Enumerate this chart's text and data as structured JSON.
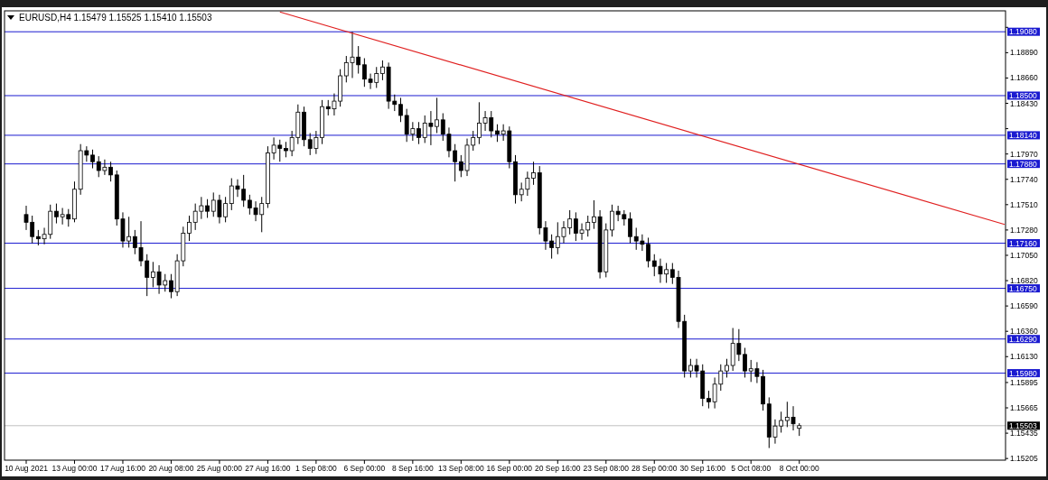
{
  "chart_data": {
    "type": "candlestick",
    "title": "EURUSD,H4  1.15479 1.15525 1.15410 1.15503",
    "color": "#000000",
    "categories": [
      "10 Aug 2021",
      null,
      null,
      null,
      null,
      null,
      null,
      null,
      "13 Aug 00:00",
      null,
      null,
      null,
      null,
      null,
      null,
      null,
      "17 Aug 16:00",
      null,
      null,
      null,
      null,
      null,
      null,
      null,
      "20 Aug 08:00",
      null,
      null,
      null,
      null,
      null,
      null,
      null,
      "25 Aug 00:00",
      null,
      null,
      null,
      null,
      null,
      null,
      null,
      "27 Aug 16:00",
      null,
      null,
      null,
      null,
      null,
      null,
      null,
      "1 Sep 08:00",
      null,
      null,
      null,
      null,
      null,
      null,
      null,
      "6 Sep 00:00",
      null,
      null,
      null,
      null,
      null,
      null,
      null,
      "8 Sep 16:00",
      null,
      null,
      null,
      null,
      null,
      null,
      null,
      "13 Sep 08:00",
      null,
      null,
      null,
      null,
      null,
      null,
      null,
      "16 Sep 00:00",
      null,
      null,
      null,
      null,
      null,
      null,
      null,
      "20 Sep 16:00",
      null,
      null,
      null,
      null,
      null,
      null,
      null,
      "23 Sep 08:00",
      null,
      null,
      null,
      null,
      null,
      null,
      null,
      "28 Sep 00:00",
      null,
      null,
      null,
      null,
      null,
      null,
      null,
      "30 Sep 16:00",
      null,
      null,
      null,
      null,
      null,
      null,
      null,
      "5 Oct 08:00",
      null,
      null,
      null,
      null,
      null,
      null,
      null,
      "8 Oct 00:00",
      null,
      null,
      null,
      null,
      null,
      null,
      null,
      null,
      null,
      null,
      null,
      null,
      null,
      null,
      null,
      null,
      null,
      null,
      null,
      null,
      null,
      null,
      null,
      null,
      null,
      null,
      null,
      null,
      null,
      null,
      null,
      null,
      null,
      null
    ],
    "ohlc": [
      [
        1.1742,
        1.175,
        1.1728,
        1.1735
      ],
      [
        1.1735,
        1.1741,
        1.1716,
        1.1722
      ],
      [
        1.1722,
        1.1728,
        1.1714,
        1.172
      ],
      [
        1.172,
        1.173,
        1.1715,
        1.1724
      ],
      [
        1.1724,
        1.1751,
        1.172,
        1.1745
      ],
      [
        1.1745,
        1.1752,
        1.1734,
        1.174
      ],
      [
        1.174,
        1.1748,
        1.1733,
        1.1742
      ],
      [
        1.1742,
        1.1747,
        1.1731,
        1.1738
      ],
      [
        1.1738,
        1.1772,
        1.1735,
        1.1765
      ],
      [
        1.1765,
        1.1806,
        1.176,
        1.18
      ],
      [
        1.18,
        1.1804,
        1.179,
        1.1796
      ],
      [
        1.1796,
        1.1801,
        1.1784,
        1.179
      ],
      [
        1.179,
        1.1795,
        1.1776,
        1.1782
      ],
      [
        1.1782,
        1.1792,
        1.1778,
        1.1785
      ],
      [
        1.1785,
        1.179,
        1.1772,
        1.1778
      ],
      [
        1.1778,
        1.1782,
        1.1732,
        1.1738
      ],
      [
        1.1738,
        1.1744,
        1.1712,
        1.1718
      ],
      [
        1.1718,
        1.174,
        1.1712,
        1.1722
      ],
      [
        1.1722,
        1.1728,
        1.1706,
        1.1712
      ],
      [
        1.1712,
        1.1736,
        1.1695,
        1.17
      ],
      [
        1.17,
        1.1706,
        1.1668,
        1.1685
      ],
      [
        1.1685,
        1.1699,
        1.1676,
        1.169
      ],
      [
        1.169,
        1.1696,
        1.167,
        1.1678
      ],
      [
        1.1678,
        1.1688,
        1.1672,
        1.1682
      ],
      [
        1.1682,
        1.1688,
        1.1666,
        1.1672
      ],
      [
        1.1672,
        1.1706,
        1.1668,
        1.17
      ],
      [
        1.17,
        1.1731,
        1.1695,
        1.1725
      ],
      [
        1.1725,
        1.1741,
        1.1718,
        1.1735
      ],
      [
        1.1735,
        1.1752,
        1.1728,
        1.1745
      ],
      [
        1.1745,
        1.1758,
        1.1738,
        1.175
      ],
      [
        1.175,
        1.1756,
        1.1739,
        1.1745
      ],
      [
        1.1745,
        1.1762,
        1.174,
        1.1755
      ],
      [
        1.1755,
        1.176,
        1.1734,
        1.174
      ],
      [
        1.174,
        1.1758,
        1.1735,
        1.1752
      ],
      [
        1.1752,
        1.1775,
        1.1746,
        1.1768
      ],
      [
        1.1768,
        1.1774,
        1.1758,
        1.1765
      ],
      [
        1.1765,
        1.1778,
        1.1749,
        1.1755
      ],
      [
        1.1755,
        1.176,
        1.1742,
        1.1748
      ],
      [
        1.1748,
        1.1754,
        1.1736,
        1.1742
      ],
      [
        1.1742,
        1.1758,
        1.1726,
        1.1752
      ],
      [
        1.1752,
        1.1804,
        1.1748,
        1.1798
      ],
      [
        1.1798,
        1.1812,
        1.1792,
        1.1805
      ],
      [
        1.1805,
        1.181,
        1.179,
        1.1802
      ],
      [
        1.1802,
        1.1808,
        1.1794,
        1.18
      ],
      [
        1.18,
        1.1818,
        1.1795,
        1.1812
      ],
      [
        1.1812,
        1.1842,
        1.1806,
        1.1835
      ],
      [
        1.1835,
        1.184,
        1.1804,
        1.181
      ],
      [
        1.181,
        1.1816,
        1.1796,
        1.1802
      ],
      [
        1.1802,
        1.1818,
        1.1797,
        1.1812
      ],
      [
        1.1812,
        1.1846,
        1.1806,
        1.184
      ],
      [
        1.184,
        1.1846,
        1.1832,
        1.1838
      ],
      [
        1.1838,
        1.1852,
        1.1832,
        1.1845
      ],
      [
        1.1845,
        1.1874,
        1.184,
        1.1868
      ],
      [
        1.1868,
        1.1886,
        1.1862,
        1.188
      ],
      [
        1.188,
        1.1908,
        1.1866,
        1.1885
      ],
      [
        1.1885,
        1.1895,
        1.187,
        1.1878
      ],
      [
        1.1878,
        1.1884,
        1.1858,
        1.1865
      ],
      [
        1.1865,
        1.187,
        1.1856,
        1.1862
      ],
      [
        1.1862,
        1.1876,
        1.1857,
        1.187
      ],
      [
        1.187,
        1.1882,
        1.1864,
        1.1876
      ],
      [
        1.1876,
        1.188,
        1.1838,
        1.1845
      ],
      [
        1.1845,
        1.1851,
        1.1836,
        1.1842
      ],
      [
        1.1842,
        1.1848,
        1.1826,
        1.1832
      ],
      [
        1.1832,
        1.1838,
        1.1808,
        1.1815
      ],
      [
        1.1815,
        1.1826,
        1.1809,
        1.182
      ],
      [
        1.182,
        1.1826,
        1.1806,
        1.1812
      ],
      [
        1.1812,
        1.1832,
        1.1807,
        1.1825
      ],
      [
        1.1825,
        1.1836,
        1.1805,
        1.1822
      ],
      [
        1.1822,
        1.1848,
        1.1816,
        1.1828
      ],
      [
        1.1828,
        1.1834,
        1.1809,
        1.1815
      ],
      [
        1.1815,
        1.1821,
        1.1794,
        1.18
      ],
      [
        1.18,
        1.1806,
        1.1772,
        1.179
      ],
      [
        1.179,
        1.1796,
        1.1776,
        1.1782
      ],
      [
        1.1782,
        1.1811,
        1.1777,
        1.1805
      ],
      [
        1.1805,
        1.1818,
        1.18,
        1.1812
      ],
      [
        1.1812,
        1.1844,
        1.1806,
        1.1825
      ],
      [
        1.1825,
        1.1836,
        1.1818,
        1.183
      ],
      [
        1.183,
        1.1836,
        1.1812,
        1.1818
      ],
      [
        1.1818,
        1.1824,
        1.1808,
        1.1815
      ],
      [
        1.1815,
        1.1824,
        1.1809,
        1.1818
      ],
      [
        1.1818,
        1.1822,
        1.1784,
        1.179
      ],
      [
        1.179,
        1.1796,
        1.1752,
        1.176
      ],
      [
        1.176,
        1.1771,
        1.1754,
        1.1765
      ],
      [
        1.1765,
        1.1781,
        1.1759,
        1.1775
      ],
      [
        1.1775,
        1.179,
        1.1769,
        1.178
      ],
      [
        1.178,
        1.1786,
        1.1724,
        1.173
      ],
      [
        1.173,
        1.1736,
        1.171,
        1.1718
      ],
      [
        1.1718,
        1.1724,
        1.1702,
        1.1712
      ],
      [
        1.1712,
        1.1735,
        1.1706,
        1.1722
      ],
      [
        1.1722,
        1.1736,
        1.1716,
        1.173
      ],
      [
        1.173,
        1.1746,
        1.1724,
        1.1738
      ],
      [
        1.1738,
        1.1744,
        1.1718,
        1.1725
      ],
      [
        1.1725,
        1.1734,
        1.1719,
        1.1728
      ],
      [
        1.1728,
        1.1741,
        1.1722,
        1.1735
      ],
      [
        1.1735,
        1.1755,
        1.1729,
        1.174
      ],
      [
        1.174,
        1.1746,
        1.1684,
        1.169
      ],
      [
        1.169,
        1.1734,
        1.1685,
        1.1728
      ],
      [
        1.1728,
        1.1751,
        1.1722,
        1.1745
      ],
      [
        1.1745,
        1.175,
        1.1736,
        1.1742
      ],
      [
        1.1742,
        1.1746,
        1.1732,
        1.1738
      ],
      [
        1.1738,
        1.1744,
        1.1716,
        1.1722
      ],
      [
        1.1722,
        1.173,
        1.171,
        1.1718
      ],
      [
        1.1718,
        1.1724,
        1.1709,
        1.1715
      ],
      [
        1.1715,
        1.1721,
        1.1694,
        1.17
      ],
      [
        1.17,
        1.1706,
        1.1686,
        1.1695
      ],
      [
        1.1695,
        1.1702,
        1.168,
        1.1688
      ],
      [
        1.1688,
        1.1698,
        1.168,
        1.1692
      ],
      [
        1.1692,
        1.1698,
        1.1679,
        1.1685
      ],
      [
        1.1685,
        1.1691,
        1.1639,
        1.1645
      ],
      [
        1.1645,
        1.1651,
        1.1594,
        1.16
      ],
      [
        1.16,
        1.1611,
        1.1594,
        1.1605
      ],
      [
        1.1605,
        1.1611,
        1.1594,
        1.16
      ],
      [
        1.16,
        1.1606,
        1.1568,
        1.1575
      ],
      [
        1.1575,
        1.1582,
        1.1566,
        1.1572
      ],
      [
        1.1572,
        1.1594,
        1.1566,
        1.1588
      ],
      [
        1.1588,
        1.1606,
        1.1582,
        1.16
      ],
      [
        1.16,
        1.1611,
        1.1594,
        1.1605
      ],
      [
        1.1605,
        1.1639,
        1.16,
        1.1625
      ],
      [
        1.1625,
        1.1638,
        1.1609,
        1.1615
      ],
      [
        1.1615,
        1.1621,
        1.1594,
        1.16
      ],
      [
        1.16,
        1.161,
        1.159,
        1.1602
      ],
      [
        1.1602,
        1.1608,
        1.1589,
        1.1595
      ],
      [
        1.1595,
        1.1601,
        1.1564,
        1.157
      ],
      [
        1.157,
        1.1576,
        1.153,
        1.154
      ],
      [
        1.154,
        1.1556,
        1.1534,
        1.155
      ],
      [
        1.155,
        1.1563,
        1.1544,
        1.1555
      ],
      [
        1.1555,
        1.1572,
        1.1549,
        1.1558
      ],
      [
        1.1558,
        1.1568,
        1.1546,
        1.1552
      ],
      [
        1.15479,
        1.15525,
        1.1541,
        1.15503
      ],
      null,
      null,
      null,
      null,
      null,
      null,
      null,
      null,
      null,
      null,
      null,
      null,
      null,
      null,
      null,
      null,
      null,
      null,
      null,
      null,
      null,
      null,
      null,
      null,
      null,
      null,
      null,
      null,
      null,
      null,
      null,
      null,
      null,
      null
    ],
    "series": [
      {
        "type": "line",
        "color": "#e02020",
        "values": [
          null,
          null,
          null,
          null,
          null,
          null,
          null,
          null,
          null,
          null,
          null,
          null,
          null,
          null,
          null,
          null,
          null,
          null,
          null,
          null,
          null,
          null,
          null,
          null,
          null,
          null,
          null,
          null,
          null,
          null,
          null,
          null,
          null,
          null,
          null,
          null,
          null,
          null,
          null,
          null,
          null,
          null,
          1.1926,
          null,
          null,
          null,
          null,
          null,
          null,
          null,
          null,
          null,
          null,
          null,
          null,
          null,
          null,
          null,
          null,
          null,
          null,
          null,
          null,
          null,
          null,
          null,
          null,
          null,
          null,
          null,
          null,
          null,
          null,
          null,
          null,
          null,
          null,
          null,
          null,
          null,
          null,
          null,
          null,
          null,
          null,
          null,
          null,
          null,
          null,
          null,
          null,
          null,
          null,
          null,
          null,
          null,
          null,
          null,
          null,
          null,
          null,
          null,
          null,
          null,
          null,
          null,
          null,
          null,
          null,
          null,
          null,
          null,
          null,
          null,
          null,
          null,
          null,
          null,
          null,
          null,
          null,
          null,
          null,
          null,
          null,
          null,
          null,
          null,
          null,
          null,
          null,
          null,
          null,
          null,
          null,
          null,
          null,
          null,
          null,
          null,
          null,
          null,
          null,
          null,
          null,
          null,
          null,
          null,
          null,
          null,
          null,
          null,
          null,
          null,
          null,
          null,
          null,
          null,
          null,
          null,
          null,
          null,
          1.1733
        ]
      }
    ],
    "ylim": [
      1.1519,
      1.1927
    ],
    "yticks": [
      {
        "value": 1.1912,
        "label": null
      },
      {
        "value": 1.1889,
        "label": "1.18890"
      },
      {
        "value": 1.1866,
        "label": "1.18660"
      },
      {
        "value": 1.1843,
        "label": "1.18430"
      },
      {
        "value": 1.182,
        "label": null
      },
      {
        "value": 1.1797,
        "label": "1.17970"
      },
      {
        "value": 1.1774,
        "label": "1.17740"
      },
      {
        "value": 1.1751,
        "label": "1.17510"
      },
      {
        "value": 1.1728,
        "label": "1.17280"
      },
      {
        "value": 1.1705,
        "label": "1.17050"
      },
      {
        "value": 1.1682,
        "label": "1.16820"
      },
      {
        "value": 1.1659,
        "label": "1.16590"
      },
      {
        "value": 1.1636,
        "label": "1.16360"
      },
      {
        "value": 1.1613,
        "label": "1.16130"
      },
      1.15895,
      1.15665,
      1.15435,
      1.15205
    ],
    "ref_lines": [
      {
        "axis": "y",
        "value": 1.1908,
        "label": "1.19080",
        "color": "#1a1ad0"
      },
      {
        "axis": "y",
        "value": 1.185,
        "label": "1.18500",
        "color": "#1a1ad0"
      },
      {
        "axis": "y",
        "value": 1.1814,
        "label": "1.18140",
        "color": "#1a1ad0"
      },
      {
        "axis": "y",
        "value": 1.1788,
        "label": "1.17880",
        "color": "#1a1ad0"
      },
      {
        "axis": "y",
        "value": 1.1716,
        "label": "1.17160",
        "color": "#1a1ad0"
      },
      {
        "axis": "y",
        "value": 1.1675,
        "label": "1.16750",
        "color": "#1a1ad0"
      },
      {
        "axis": "y",
        "value": 1.1629,
        "label": "1.16290",
        "color": "#1a1ad0"
      },
      {
        "axis": "y",
        "value": 1.1598,
        "label": "1.15980",
        "color": "#1a1ad0"
      },
      {
        "axis": "y",
        "value": 1.15503,
        "label": "1.15503",
        "color": "#c0c0c0"
      }
    ],
    "grid": false
  }
}
